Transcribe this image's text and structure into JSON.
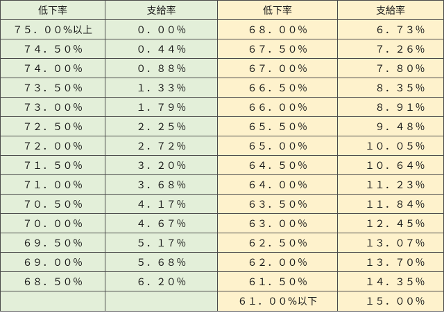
{
  "headers": {
    "left_decline": "低下率",
    "left_payment": "支給率",
    "right_decline": "低下率",
    "right_payment": "支給率"
  },
  "rows": [
    {
      "left_decline": "７５．００%以上",
      "left_payment": "０．００％",
      "right_decline": "６８．００％",
      "right_payment": "６．７３％"
    },
    {
      "left_decline": "７４．５０％",
      "left_payment": "０．４４％",
      "right_decline": "６７．５０％",
      "right_payment": "７．２６％"
    },
    {
      "left_decline": "７４．００％",
      "left_payment": "０．８８％",
      "right_decline": "６７．００％",
      "right_payment": "７．８０％"
    },
    {
      "left_decline": "７３．５０％",
      "left_payment": "１．３３％",
      "right_decline": "６６．５０％",
      "right_payment": "８．３５％"
    },
    {
      "left_decline": "７３．００％",
      "left_payment": "１．７９％",
      "right_decline": "６６．００％",
      "right_payment": "８．９１％"
    },
    {
      "left_decline": "７２．５０％",
      "left_payment": "２．２５％",
      "right_decline": "６５．５０％",
      "right_payment": "９．４８％"
    },
    {
      "left_decline": "７２．００％",
      "left_payment": "２．７２％",
      "right_decline": "６５．００％",
      "right_payment": "１０．０５％"
    },
    {
      "left_decline": "７１．５０％",
      "left_payment": "３．２０％",
      "right_decline": "６４．５０％",
      "right_payment": "１０．６４％"
    },
    {
      "left_decline": "７１．００％",
      "left_payment": "３．６８％",
      "right_decline": "６４．００％",
      "right_payment": "１１．２３％"
    },
    {
      "left_decline": "７０．５０％",
      "left_payment": "４．１７％",
      "right_decline": "６３．５０％",
      "right_payment": "１１．８４％"
    },
    {
      "left_decline": "７０．００％",
      "left_payment": "４．６７％",
      "right_decline": "６３．００％",
      "right_payment": "１２．４５％"
    },
    {
      "left_decline": "６９．５０％",
      "left_payment": "５．１７％",
      "right_decline": "６２．５０％",
      "right_payment": "１３．０７％"
    },
    {
      "left_decline": "６９．００％",
      "left_payment": "５．６８％",
      "right_decline": "６２．００％",
      "right_payment": "１３．７０％"
    },
    {
      "left_decline": "６８．５０％",
      "left_payment": "６．２０％",
      "right_decline": "６１．５０％",
      "right_payment": "１４．３５％"
    },
    {
      "left_decline": "",
      "left_payment": "",
      "right_decline": "６１．００%以下",
      "right_payment": "１５．００％"
    }
  ],
  "colors": {
    "left_bg": "#e3efd9",
    "right_bg": "#fef2cc",
    "border": "#4a4a4a"
  }
}
